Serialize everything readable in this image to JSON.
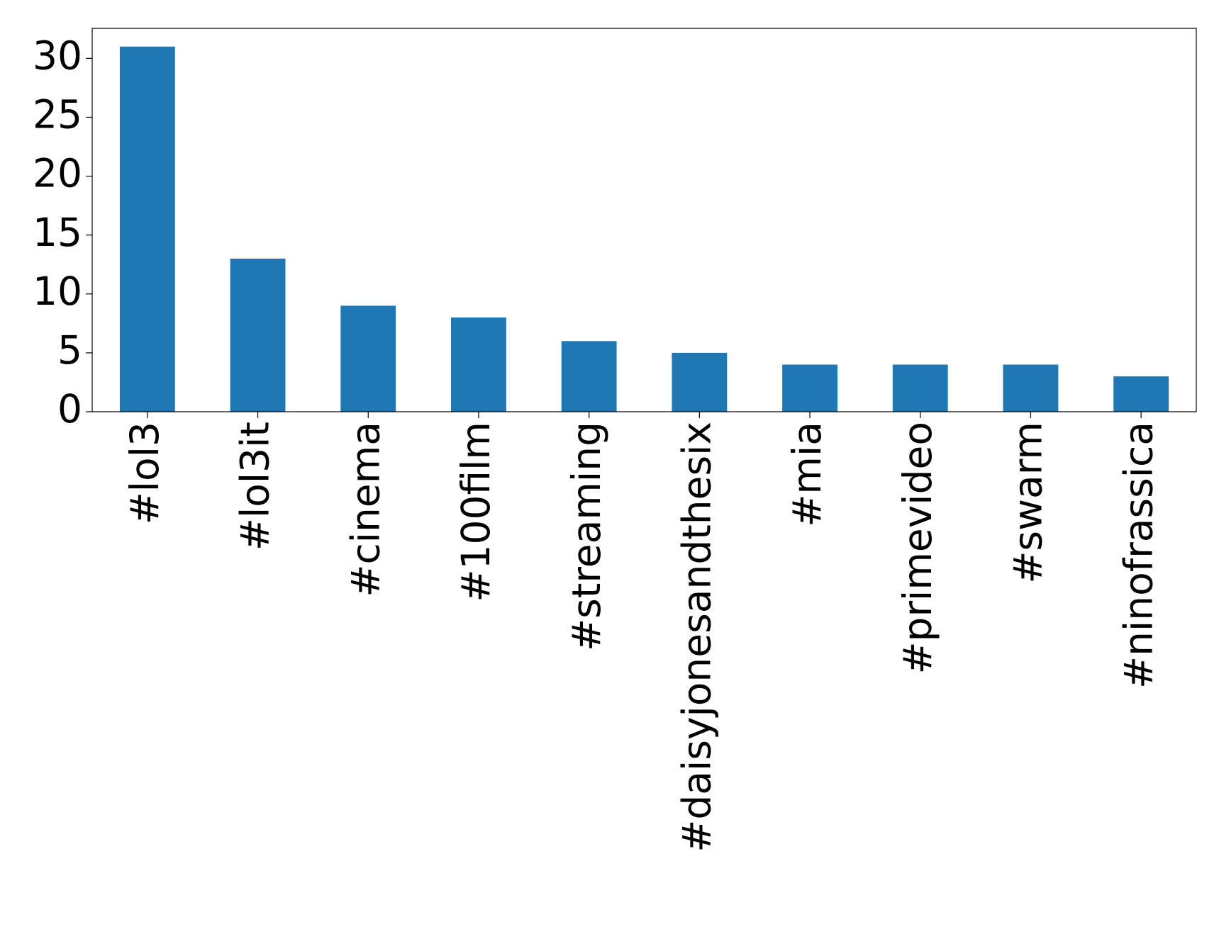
{
  "chart_data": {
    "type": "bar",
    "categories": [
      "#lol3",
      "#lol3it",
      "#cinema",
      "#100film",
      "#streaming",
      "#daisyjonesandthesix",
      "#mia",
      "#primevideo",
      "#swarm",
      "#ninofrassica"
    ],
    "values": [
      31,
      13,
      9,
      8,
      6,
      5,
      4,
      4,
      4,
      3
    ],
    "color": "#1f77b4",
    "ylim": [
      0,
      32.55
    ],
    "yticks": [
      0,
      5,
      10,
      15,
      20,
      25,
      30
    ],
    "grid": false
  }
}
